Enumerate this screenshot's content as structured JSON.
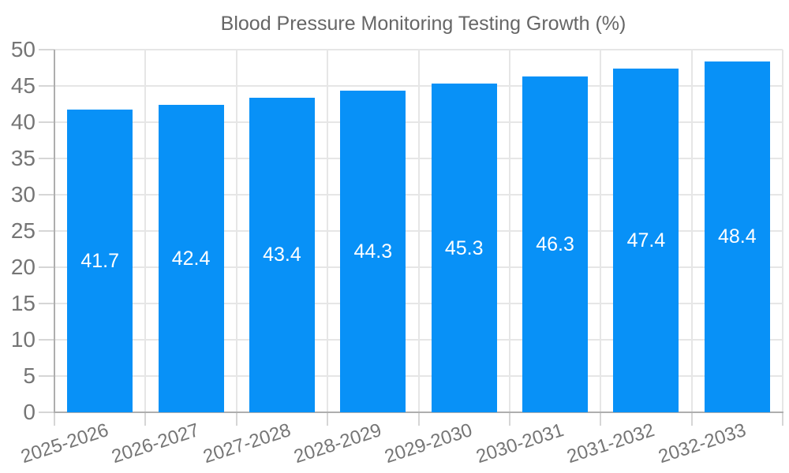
{
  "legend": {
    "label": "Blood Pressure Monitoring Testing Growth (%)"
  },
  "chart_data": {
    "type": "bar",
    "title": "Blood Pressure Monitoring Testing Growth (%)",
    "categories": [
      "2025-2026",
      "2026-2027",
      "2027-2028",
      "2028-2029",
      "2029-2030",
      "2030-2031",
      "2031-2032",
      "2032-2033"
    ],
    "values": [
      41.7,
      42.4,
      43.4,
      44.3,
      45.3,
      46.3,
      47.4,
      48.4
    ],
    "value_labels": [
      "41.7",
      "42.4",
      "43.4",
      "44.3",
      "45.3",
      "46.3",
      "47.4",
      "48.4"
    ],
    "xlabel": "",
    "ylabel": "",
    "ylim": [
      0,
      50
    ],
    "ytick_step": 5,
    "ytick_labels": [
      "0",
      "5",
      "10",
      "15",
      "20",
      "25",
      "30",
      "35",
      "40",
      "45",
      "50"
    ],
    "grid": true,
    "legend_position": "top",
    "colors": {
      "bar": "#0891f7",
      "grid": "#e6e6e6",
      "axis": "#aeaeae",
      "tick": "#d6d6d6",
      "axis_text": "#757575",
      "legend_text": "#666666",
      "value_text": "#ffffff",
      "background": "#ffffff"
    }
  }
}
